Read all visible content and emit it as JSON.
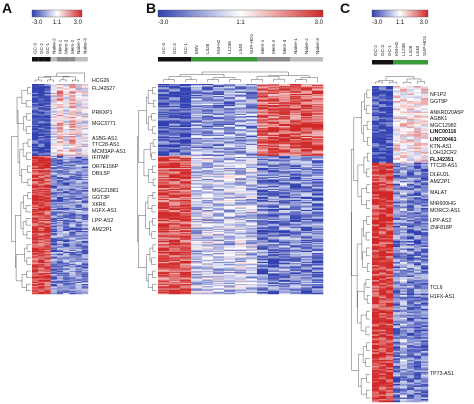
{
  "figure": {
    "panels": [
      {
        "letter": "A",
        "scale": {
          "min": "-3.0",
          "mid": "1:1",
          "max": "3.0"
        },
        "samples": [
          "GC-3",
          "GC-2",
          "GC-1",
          "Naive-2",
          "Mem-1",
          "Mem-3",
          "Mem-2",
          "Naive-1",
          "Naive-3"
        ],
        "group_colors": [
          "#111111",
          "#111111",
          "#111111",
          "#bdbdbd",
          "#8c8c8c",
          "#8c8c8c",
          "#8c8c8c",
          "#bdbdbd",
          "#bdbdbd"
        ],
        "genes": [
          {
            "label": "HCG26",
            "bold": false
          },
          {
            "label": "FLJ42627",
            "bold": false
          },
          {
            "label": "PRKXP1",
            "bold": false
          },
          {
            "label": "MGC3771",
            "bold": false
          },
          {
            "label": "A1BG-AS1",
            "bold": false
          },
          {
            "label": "TTC28-AS1",
            "bold": false
          },
          {
            "label": "MCM3AP-AS1",
            "bold": false
          },
          {
            "label": "IFITMP",
            "bold": false
          },
          {
            "label": "OR7E156P",
            "bold": false
          },
          {
            "label": "DBIL5P",
            "bold": false
          },
          {
            "label": "MGC21881",
            "bold": false
          },
          {
            "label": "GGT3P",
            "bold": false
          },
          {
            "label": "XKR6",
            "bold": false
          },
          {
            "label": "H1FX-AS1",
            "bold": false
          },
          {
            "label": "LPP-AS2",
            "bold": false
          },
          {
            "label": "AMZ2P1",
            "bold": false
          }
        ]
      },
      {
        "letter": "B",
        "scale": {
          "min": "-3.0",
          "mid": "1:1",
          "max": "3.0"
        },
        "samples": [
          "GC-3",
          "GC-2",
          "GC-1",
          "EBV",
          "L428",
          "KM-H2",
          "L1236",
          "L540",
          "SUP-HD1",
          "Mem-1",
          "Mem-2",
          "Mem-3",
          "Naive-1",
          "Naive-2",
          "Naive-3"
        ],
        "group_colors": [
          "#111111",
          "#111111",
          "#111111",
          "#3a9a3a",
          "#3a9a3a",
          "#3a9a3a",
          "#3a9a3a",
          "#3a9a3a",
          "#3a9a3a",
          "#8c8c8c",
          "#8c8c8c",
          "#8c8c8c",
          "#bdbdbd",
          "#bdbdbd",
          "#bdbdbd"
        ]
      },
      {
        "letter": "C",
        "scale": {
          "min": "-3.0",
          "mid": "1:1",
          "max": "3.0"
        },
        "samples": [
          "GC-2",
          "GC-3",
          "GC-1",
          "KM-H2",
          "L1236",
          "L428",
          "L540",
          "SUP-HD1"
        ],
        "group_colors": [
          "#111111",
          "#111111",
          "#111111",
          "#3a9a3a",
          "#3a9a3a",
          "#3a9a3a",
          "#3a9a3a",
          "#3a9a3a"
        ],
        "genes": [
          {
            "label": "NF1P2",
            "bold": false
          },
          {
            "label": "GGT8P",
            "bold": false
          },
          {
            "label": "ANKRD20A5P",
            "bold": false
          },
          {
            "label": "AGBK1",
            "bold": false
          },
          {
            "label": "MGC12982",
            "bold": false
          },
          {
            "label": "LINC00116",
            "bold": true
          },
          {
            "label": "LINC00461",
            "bold": true
          },
          {
            "label": "KTN-AS1",
            "bold": false
          },
          {
            "label": "LOH12CR2",
            "bold": false
          },
          {
            "label": "FLJ42351",
            "bold": true
          },
          {
            "label": "TTC28-AS1",
            "bold": false
          },
          {
            "label": "DLEU2L",
            "bold": false
          },
          {
            "label": "AMZ2P1",
            "bold": false
          },
          {
            "label": "MALAT",
            "bold": false
          },
          {
            "label": "MIR600HG",
            "bold": false
          },
          {
            "label": "MORC2-AS1",
            "bold": false
          },
          {
            "label": "LPP-AS2",
            "bold": false
          },
          {
            "label": "ZNF818P",
            "bold": false
          },
          {
            "label": "TCL6",
            "bold": false
          },
          {
            "label": "H1FX-AS1",
            "bold": false
          },
          {
            "label": "TP73-AS1",
            "bold": false
          }
        ]
      }
    ],
    "colors": {
      "low": "#3040b0",
      "mid": "#ffffff",
      "high": "#d02828"
    }
  }
}
